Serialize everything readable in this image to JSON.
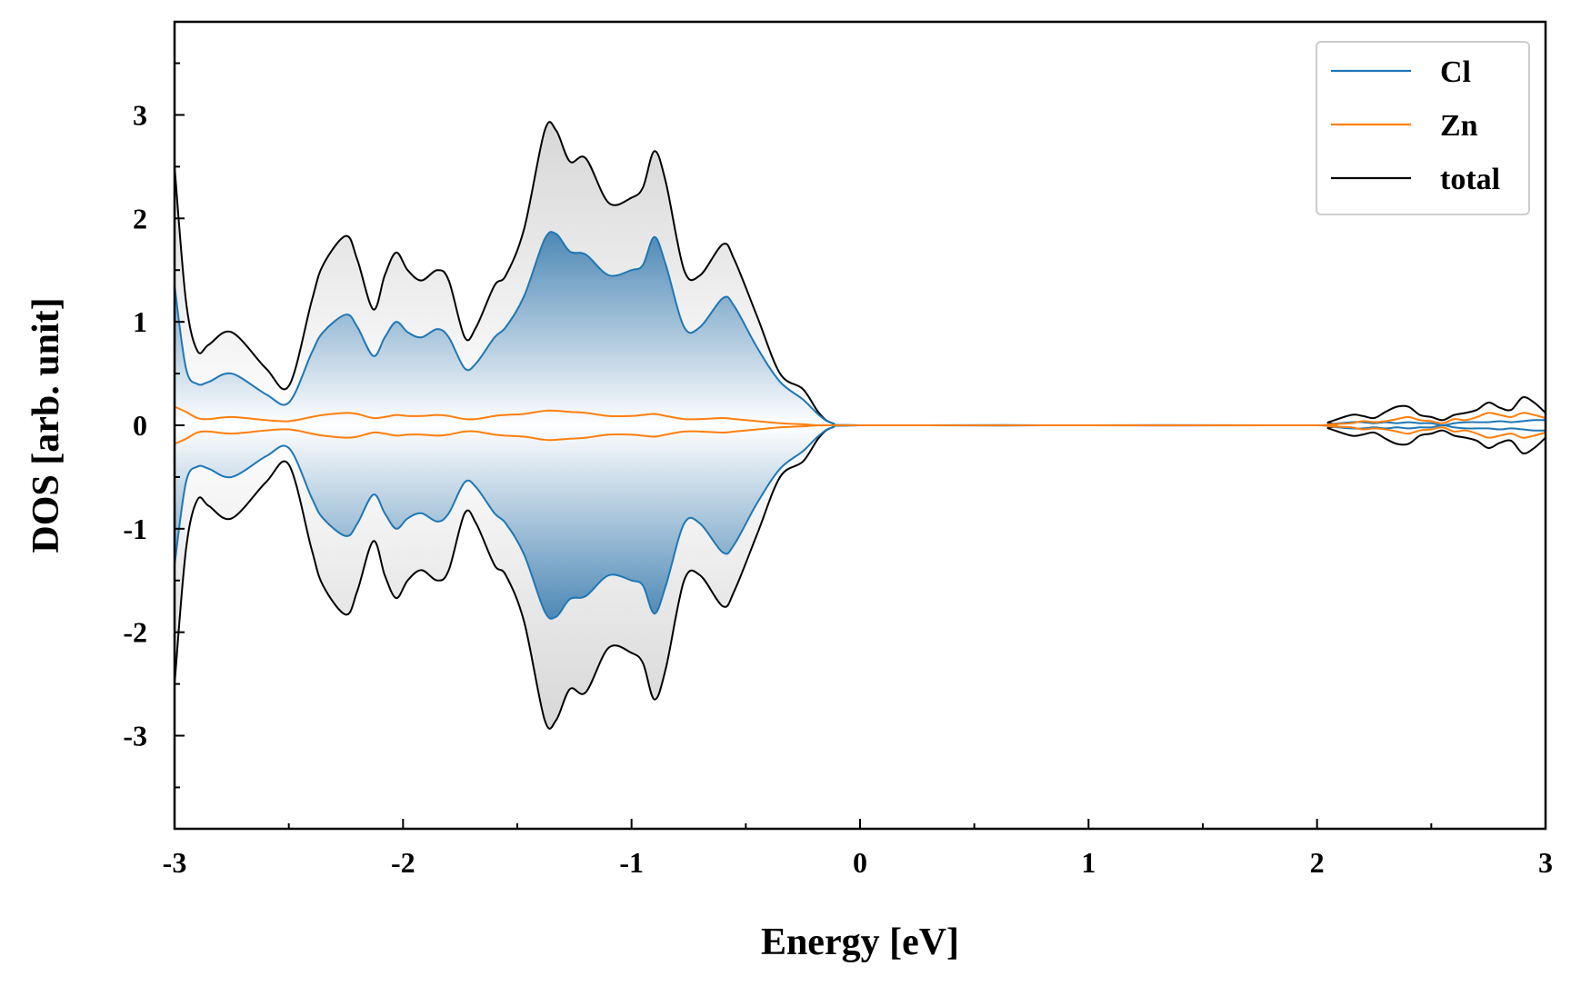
{
  "chart_data": {
    "type": "area",
    "xlabel": "Energy [eV]",
    "ylabel": "DOS [arb. unit]",
    "xlim": [
      -3,
      3
    ],
    "ylim": [
      -3.9,
      3.9
    ],
    "x_ticks": [
      -3,
      -2,
      -1,
      0,
      1,
      2,
      3
    ],
    "y_ticks": [
      -3,
      -2,
      -1,
      0,
      1,
      2,
      3
    ],
    "x_tick_labels": [
      "-3",
      "-2",
      "-1",
      "0",
      "1",
      "2",
      "3"
    ],
    "y_tick_labels": [
      "-3",
      "-2",
      "-1",
      "0",
      "1",
      "2",
      "3"
    ],
    "legend": {
      "position": "top-right",
      "entries": [
        "Cl",
        "Zn",
        "total"
      ]
    },
    "mirrored": true,
    "x": [
      -3.0,
      -2.95,
      -2.9,
      -2.85,
      -2.75,
      -2.6,
      -2.5,
      -2.4,
      -2.35,
      -2.25,
      -2.2,
      -2.13,
      -2.08,
      -2.03,
      -1.98,
      -1.92,
      -1.85,
      -1.8,
      -1.73,
      -1.68,
      -1.6,
      -1.55,
      -1.47,
      -1.38,
      -1.33,
      -1.27,
      -1.2,
      -1.1,
      -1.0,
      -0.95,
      -0.9,
      -0.85,
      -0.77,
      -0.7,
      -0.6,
      -0.55,
      -0.45,
      -0.35,
      -0.25,
      -0.18,
      -0.12,
      0.0,
      1.0,
      2.0,
      2.05,
      2.15,
      2.2,
      2.25,
      2.3,
      2.35,
      2.4,
      2.45,
      2.5,
      2.55,
      2.6,
      2.65,
      2.7,
      2.75,
      2.8,
      2.85,
      2.9,
      2.95,
      3.0
    ],
    "series": [
      {
        "name": "Cl",
        "color": "#1f77b4",
        "values": [
          1.35,
          0.55,
          0.4,
          0.42,
          0.5,
          0.3,
          0.22,
          0.7,
          0.9,
          1.07,
          0.95,
          0.67,
          0.85,
          1.0,
          0.9,
          0.85,
          0.93,
          0.85,
          0.55,
          0.6,
          0.85,
          0.95,
          1.25,
          1.8,
          1.85,
          1.68,
          1.65,
          1.45,
          1.5,
          1.55,
          1.82,
          1.55,
          0.95,
          0.95,
          1.23,
          1.15,
          0.75,
          0.42,
          0.25,
          0.1,
          0.02,
          0.0,
          0.0,
          0.0,
          0.01,
          0.03,
          0.03,
          0.02,
          0.03,
          0.02,
          0.03,
          0.02,
          0.02,
          0.0,
          0.02,
          0.03,
          0.03,
          0.03,
          0.04,
          0.03,
          0.04,
          0.05,
          0.05
        ]
      },
      {
        "name": "Zn",
        "color": "#ff7f0e",
        "values": [
          0.18,
          0.13,
          0.07,
          0.06,
          0.08,
          0.05,
          0.04,
          0.08,
          0.1,
          0.12,
          0.11,
          0.07,
          0.08,
          0.1,
          0.09,
          0.09,
          0.1,
          0.09,
          0.06,
          0.06,
          0.09,
          0.1,
          0.11,
          0.14,
          0.14,
          0.13,
          0.12,
          0.09,
          0.09,
          0.1,
          0.11,
          0.09,
          0.06,
          0.06,
          0.07,
          0.06,
          0.04,
          0.02,
          0.01,
          0.0,
          0.0,
          0.0,
          0.0,
          0.0,
          0.01,
          0.02,
          0.04,
          0.03,
          0.04,
          0.06,
          0.08,
          0.05,
          0.04,
          0.02,
          0.06,
          0.05,
          0.08,
          0.12,
          0.1,
          0.08,
          0.12,
          0.1,
          0.07
        ]
      },
      {
        "name": "total",
        "color": "#000000",
        "values": [
          2.5,
          1.2,
          0.72,
          0.78,
          0.9,
          0.55,
          0.38,
          1.2,
          1.55,
          1.83,
          1.6,
          1.12,
          1.45,
          1.67,
          1.5,
          1.4,
          1.5,
          1.4,
          0.85,
          0.95,
          1.35,
          1.45,
          1.9,
          2.85,
          2.85,
          2.55,
          2.58,
          2.15,
          2.2,
          2.3,
          2.65,
          2.35,
          1.5,
          1.45,
          1.75,
          1.6,
          1.05,
          0.5,
          0.35,
          0.12,
          0.02,
          0.0,
          0.0,
          0.0,
          0.03,
          0.1,
          0.09,
          0.07,
          0.13,
          0.18,
          0.18,
          0.1,
          0.08,
          0.05,
          0.1,
          0.12,
          0.15,
          0.22,
          0.17,
          0.15,
          0.27,
          0.22,
          0.12
        ]
      }
    ]
  }
}
